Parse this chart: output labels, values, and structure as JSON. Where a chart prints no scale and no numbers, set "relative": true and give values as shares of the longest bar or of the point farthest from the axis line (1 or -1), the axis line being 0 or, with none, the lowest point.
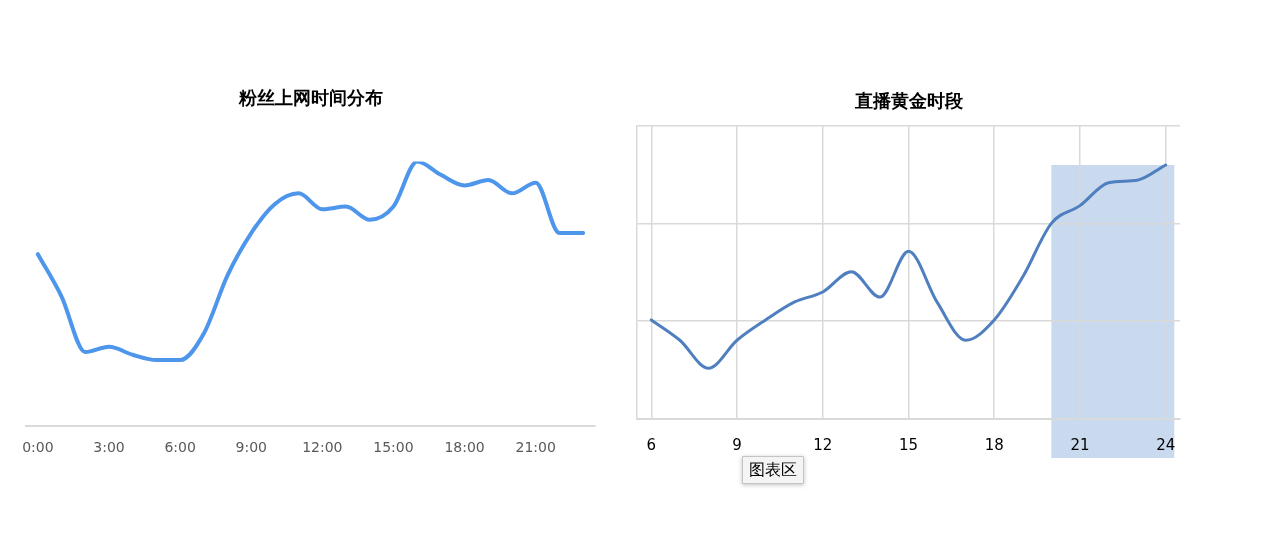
{
  "chart_data": [
    {
      "type": "line",
      "title": "粉丝上网时间分布",
      "relative": true,
      "marker": "none",
      "color": "#4e95ec",
      "x": [
        0,
        1,
        2,
        3,
        4,
        5,
        6,
        7,
        8,
        9,
        10,
        11,
        12,
        13,
        14,
        15,
        16,
        17,
        18,
        19,
        20,
        21,
        22,
        23
      ],
      "values": [
        0.65,
        0.49,
        0.28,
        0.3,
        0.27,
        0.25,
        0.25,
        0.35,
        0.57,
        0.73,
        0.84,
        0.88,
        0.82,
        0.83,
        0.78,
        0.83,
        1,
        0.95,
        0.91,
        0.93,
        0.88,
        0.92,
        0.73,
        0.73
      ],
      "xlim": [
        -0.5,
        23.5
      ],
      "xticks": [
        {
          "value": 0,
          "label": "0:00"
        },
        {
          "value": 3,
          "label": "3:00"
        },
        {
          "value": 6,
          "label": "6:00"
        },
        {
          "value": 9,
          "label": "9:00"
        },
        {
          "value": 12,
          "label": "12:00"
        },
        {
          "value": 15,
          "label": "15:00"
        },
        {
          "value": 18,
          "label": "18:00"
        },
        {
          "value": 21,
          "label": "21:00"
        }
      ]
    },
    {
      "type": "line",
      "title": "直播黄金时段",
      "relative": true,
      "marker": "none",
      "color": "#4f7fbe",
      "grid": true,
      "x": [
        6,
        7,
        8,
        9,
        10,
        11,
        12,
        13,
        14,
        15,
        16,
        17,
        18,
        19,
        20,
        21,
        22,
        23,
        24
      ],
      "values": [
        0.39,
        0.31,
        0.2,
        0.31,
        0.39,
        0.46,
        0.5,
        0.58,
        0.48,
        0.66,
        0.46,
        0.31,
        0.39,
        0.56,
        0.77,
        0.84,
        0.93,
        0.94,
        1
      ],
      "xlim": [
        5.5,
        24.5
      ],
      "xticks": [
        6,
        9,
        12,
        15,
        18,
        21,
        24
      ],
      "bands": [
        {
          "axis": "x",
          "from": 20,
          "to": 24.3,
          "color": "#c9d9ee"
        }
      ],
      "annotations": [
        "图表区"
      ]
    }
  ]
}
